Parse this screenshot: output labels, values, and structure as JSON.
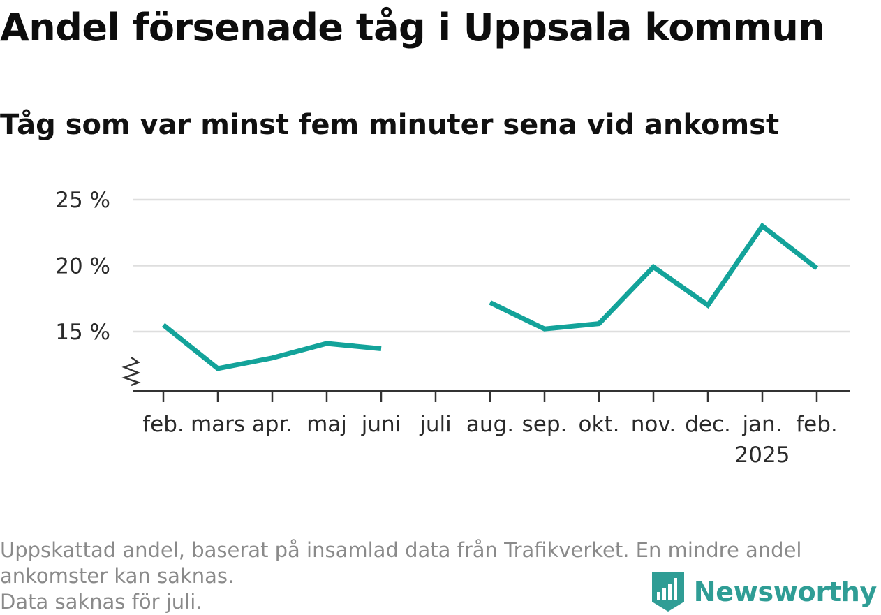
{
  "title": "Andel försenade tåg i Uppsala kommun",
  "subtitle": "Tåg som var minst fem minuter sena vid ankomst",
  "footnote_lines": [
    "Uppskattad andel, baserat på insamlad data från Trafikverket. En mindre andel",
    "ankomster kan saknas.",
    "Data saknas för juli."
  ],
  "brand": {
    "name": "Newsworthy",
    "logo_icon": "bar-chart-shield-icon",
    "color": "#2f9d95"
  },
  "chart_data": {
    "type": "line",
    "categories": [
      "feb.",
      "mars",
      "apr.",
      "maj",
      "juni",
      "juli",
      "aug.",
      "sep.",
      "okt.",
      "nov.",
      "dec.",
      "jan.",
      "feb."
    ],
    "year_labels": [
      {
        "index": 11,
        "label": "2025"
      }
    ],
    "series": [
      {
        "values": [
          15.5,
          12.2,
          13.0,
          14.1,
          13.7,
          null,
          17.2,
          15.2,
          15.6,
          19.9,
          17.0,
          23.0,
          19.8
        ],
        "color": "#13a39a"
      }
    ],
    "yticks": [
      15,
      20,
      25
    ],
    "ytick_labels": [
      "15 %",
      "20 %",
      "25 %"
    ],
    "ylim": [
      10.5,
      25
    ],
    "axis_break": true,
    "grid": true,
    "legend": "none"
  }
}
